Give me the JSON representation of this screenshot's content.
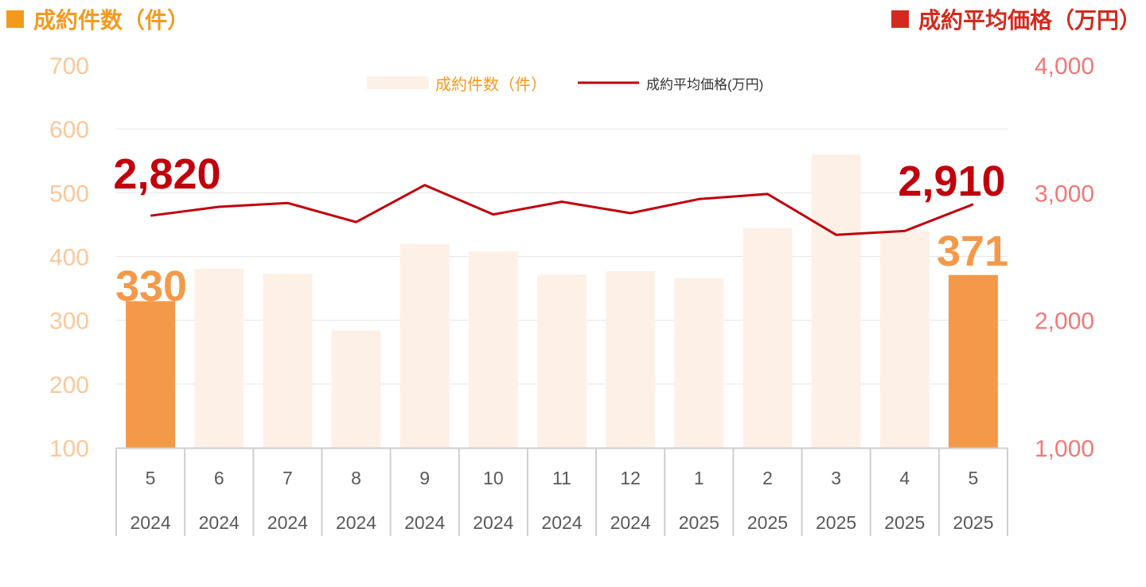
{
  "header": {
    "left": {
      "label": "成約件数（件）",
      "color": "#f39a1e"
    },
    "right": {
      "label": "成約平均価格（万円）",
      "color": "#d42a1e"
    }
  },
  "chart_data": {
    "type": "bar",
    "categories": [
      {
        "month": "5",
        "year": "2024"
      },
      {
        "month": "6",
        "year": "2024"
      },
      {
        "month": "7",
        "year": "2024"
      },
      {
        "month": "8",
        "year": "2024"
      },
      {
        "month": "9",
        "year": "2024"
      },
      {
        "month": "10",
        "year": "2024"
      },
      {
        "month": "11",
        "year": "2024"
      },
      {
        "month": "12",
        "year": "2024"
      },
      {
        "month": "1",
        "year": "2025"
      },
      {
        "month": "2",
        "year": "2025"
      },
      {
        "month": "3",
        "year": "2025"
      },
      {
        "month": "4",
        "year": "2025"
      },
      {
        "month": "5",
        "year": "2025"
      }
    ],
    "series": [
      {
        "name": "成約件数（件）",
        "type": "bar",
        "axis": "left",
        "values": [
          330,
          381,
          373,
          284,
          420,
          408,
          372,
          377,
          366,
          445,
          560,
          440,
          371
        ],
        "highlight_indices": [
          0,
          12
        ],
        "color": "#f4994a",
        "faded_color": "#fdf1e7"
      },
      {
        "name": "成約平均価格(万円)",
        "type": "line",
        "axis": "right",
        "values": [
          2820,
          2890,
          2920,
          2770,
          3060,
          2830,
          2930,
          2840,
          2950,
          2990,
          2670,
          2700,
          2910
        ],
        "color": "#c0000d"
      }
    ],
    "y_left": {
      "min": 100,
      "max": 700,
      "ticks": [
        "100",
        "200",
        "300",
        "400",
        "500",
        "600",
        "700"
      ],
      "color": "#f9c89b"
    },
    "y_right": {
      "min": 1000,
      "max": 4000,
      "ticks": [
        "1,000",
        "2,000",
        "3,000",
        "4,000"
      ],
      "color": "#f07878"
    },
    "annotations": [
      {
        "series": 0,
        "index": 0,
        "text": "330",
        "color": "#f4994a"
      },
      {
        "series": 0,
        "index": 12,
        "text": "371",
        "color": "#f4994a"
      },
      {
        "series": 1,
        "index": 0,
        "text": "2,820",
        "color": "#c0000d"
      },
      {
        "series": 1,
        "index": 12,
        "text": "2,910",
        "color": "#c0000d"
      }
    ],
    "legend_position": "top-center",
    "grid": true
  }
}
